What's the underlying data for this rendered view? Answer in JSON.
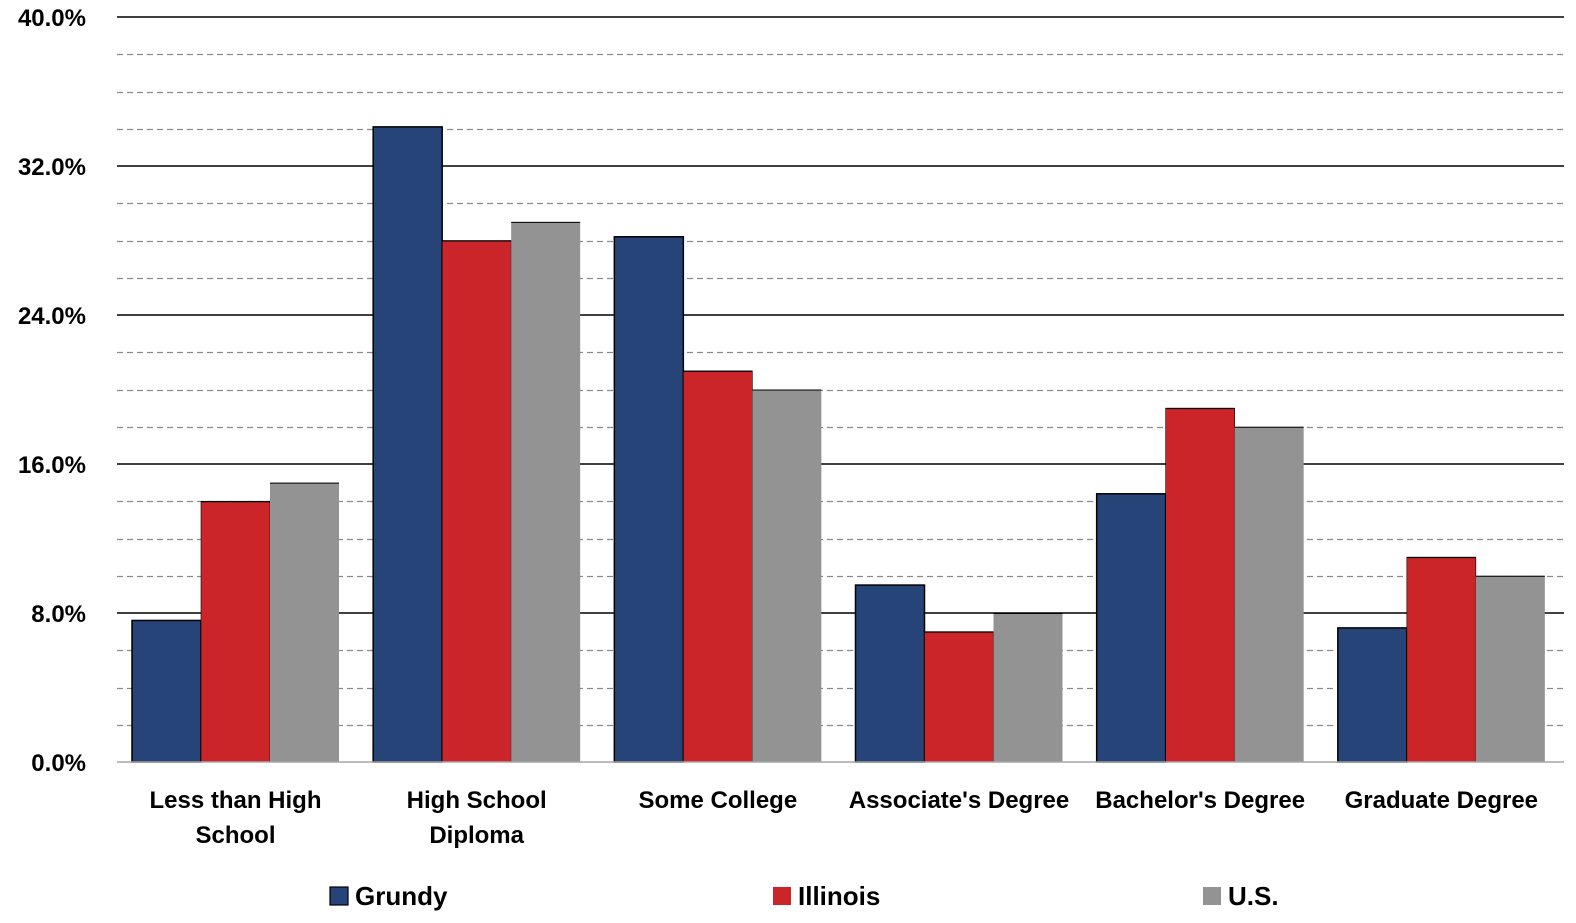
{
  "chart_data": {
    "type": "bar",
    "title": "",
    "xlabel": "",
    "ylabel": "",
    "ylim": [
      0,
      40
    ],
    "y_tick_values": [
      0,
      8,
      16,
      24,
      32,
      40
    ],
    "y_tick_labels": [
      "0.0%",
      "8.0%",
      "16.0%",
      "24.0%",
      "32.0%",
      "40.0%"
    ],
    "minor_gridlines": [
      2,
      4,
      6,
      10,
      12,
      14,
      18,
      20,
      22,
      26,
      28,
      30,
      34,
      36,
      38
    ],
    "grid": true,
    "legend_position": "bottom",
    "categories": [
      [
        "Less than High",
        "School"
      ],
      [
        "High School",
        "Diploma"
      ],
      [
        "Some College"
      ],
      [
        "Associate's Degree"
      ],
      [
        "Bachelor's Degree"
      ],
      [
        "Graduate Degree"
      ]
    ],
    "series": [
      {
        "name": "Grundy",
        "color": "#264478",
        "values": [
          7.6,
          34.1,
          28.2,
          9.5,
          14.4,
          7.2
        ]
      },
      {
        "name": "Illinois",
        "color": "#CC2529",
        "values": [
          14.0,
          28.0,
          21.0,
          7.0,
          19.0,
          11.0
        ]
      },
      {
        "name": "U.S.",
        "color": "#939393",
        "values": [
          15.0,
          29.0,
          20.0,
          8.0,
          18.0,
          10.0
        ]
      }
    ]
  }
}
